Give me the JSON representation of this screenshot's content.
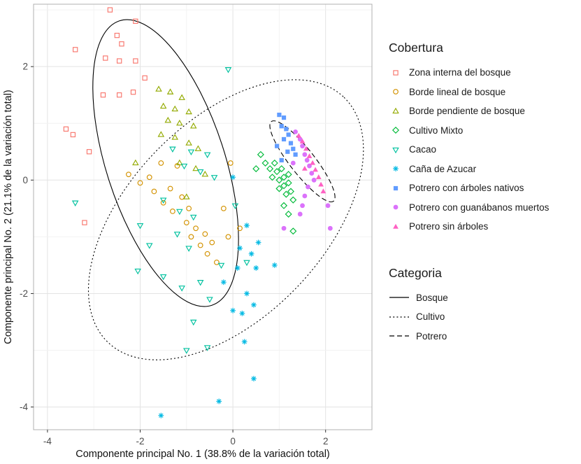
{
  "chart_data": {
    "type": "scatter",
    "title": "",
    "x_label": "Componente principal No. 1 (38.8% de la variación total)",
    "y_label": "Componente principal No. 2 (21.1% de la variación total)",
    "x_ticks": [
      -4,
      -2,
      0,
      2
    ],
    "y_ticks": [
      -4,
      -2,
      0,
      2
    ],
    "x_range": [
      -4.3,
      3.0
    ],
    "y_range": [
      -4.4,
      3.1
    ],
    "grid": true,
    "legend_position": "right",
    "series": [
      {
        "name": "Zona interna del bosque",
        "marker": "square-open",
        "color": "#F8766D",
        "points": [
          [
            -2.65,
            3.0
          ],
          [
            -2.1,
            2.8
          ],
          [
            -2.5,
            2.55
          ],
          [
            -2.4,
            2.4
          ],
          [
            -3.4,
            2.3
          ],
          [
            -2.75,
            2.15
          ],
          [
            -2.45,
            2.1
          ],
          [
            -2.1,
            2.1
          ],
          [
            -1.9,
            1.8
          ],
          [
            -2.15,
            1.55
          ],
          [
            -2.45,
            1.5
          ],
          [
            -2.8,
            1.5
          ],
          [
            -3.6,
            0.9
          ],
          [
            -3.45,
            0.8
          ],
          [
            -3.1,
            0.5
          ],
          [
            -3.2,
            -0.75
          ]
        ]
      },
      {
        "name": "Borde lineal de bosque",
        "marker": "circle-open",
        "color": "#D39200",
        "points": [
          [
            -2.25,
            0.1
          ],
          [
            -2.0,
            -0.05
          ],
          [
            -1.8,
            0.05
          ],
          [
            -1.7,
            -0.2
          ],
          [
            -1.55,
            0.3
          ],
          [
            -1.5,
            -0.4
          ],
          [
            -1.35,
            -0.15
          ],
          [
            -1.3,
            -0.55
          ],
          [
            -1.2,
            0.25
          ],
          [
            -1.1,
            -0.3
          ],
          [
            -1.0,
            -0.75
          ],
          [
            -0.95,
            -0.5
          ],
          [
            -0.9,
            -1.0
          ],
          [
            -0.8,
            -0.85
          ],
          [
            -0.7,
            -1.15
          ],
          [
            -0.6,
            -0.95
          ],
          [
            -0.55,
            -1.3
          ],
          [
            -0.45,
            -1.1
          ],
          [
            -0.35,
            -1.45
          ],
          [
            -0.2,
            -0.5
          ],
          [
            -0.1,
            -1.0
          ],
          [
            0.15,
            -0.85
          ],
          [
            -0.05,
            0.3
          ]
        ]
      },
      {
        "name": "Borde pendiente de bosque",
        "marker": "triangle-open",
        "color": "#93AA00",
        "points": [
          [
            -1.6,
            1.6
          ],
          [
            -1.35,
            1.55
          ],
          [
            -1.1,
            1.45
          ],
          [
            -1.5,
            1.3
          ],
          [
            -1.25,
            1.25
          ],
          [
            -0.95,
            1.2
          ],
          [
            -1.4,
            1.05
          ],
          [
            -1.15,
            1.0
          ],
          [
            -0.85,
            0.95
          ],
          [
            -1.55,
            0.8
          ],
          [
            -1.25,
            0.75
          ],
          [
            -0.95,
            0.65
          ],
          [
            -0.75,
            0.55
          ],
          [
            -2.1,
            0.3
          ],
          [
            -1.15,
            0.3
          ],
          [
            -0.8,
            0.2
          ],
          [
            -0.6,
            0.1
          ],
          [
            -1.0,
            -0.3
          ]
        ]
      },
      {
        "name": "Cultivo Mixto",
        "marker": "diamond-open",
        "color": "#00BA38",
        "points": [
          [
            0.5,
            0.2
          ],
          [
            0.6,
            0.45
          ],
          [
            0.7,
            0.3
          ],
          [
            0.8,
            0.2
          ],
          [
            0.85,
            0.05
          ],
          [
            0.9,
            0.3
          ],
          [
            0.95,
            0.15
          ],
          [
            1.0,
            0.0
          ],
          [
            1.0,
            -0.15
          ],
          [
            1.05,
            0.2
          ],
          [
            1.1,
            0.05
          ],
          [
            1.1,
            -0.1
          ],
          [
            1.15,
            -0.25
          ],
          [
            1.2,
            0.1
          ],
          [
            1.2,
            -0.05
          ],
          [
            1.25,
            -0.2
          ],
          [
            1.3,
            -0.35
          ],
          [
            1.1,
            -0.45
          ],
          [
            1.2,
            -0.6
          ],
          [
            1.3,
            -0.9
          ]
        ]
      },
      {
        "name": "Cacao",
        "marker": "triangle-down-open",
        "color": "#00C19F",
        "points": [
          [
            -3.4,
            -0.4
          ],
          [
            -0.1,
            1.95
          ],
          [
            -1.3,
            0.55
          ],
          [
            -0.9,
            0.5
          ],
          [
            -0.55,
            0.45
          ],
          [
            -1.05,
            0.25
          ],
          [
            -0.7,
            0.15
          ],
          [
            -0.4,
            0.05
          ],
          [
            -1.5,
            -0.35
          ],
          [
            -1.15,
            -0.55
          ],
          [
            -0.85,
            -0.65
          ],
          [
            -2.0,
            -0.8
          ],
          [
            -1.2,
            -0.95
          ],
          [
            -0.95,
            -1.2
          ],
          [
            -1.8,
            -1.15
          ],
          [
            -2.05,
            -1.6
          ],
          [
            -1.5,
            -1.7
          ],
          [
            -1.1,
            -1.9
          ],
          [
            -0.7,
            -1.8
          ],
          [
            -0.5,
            -2.1
          ],
          [
            -0.85,
            -2.5
          ],
          [
            -1.0,
            -3.0
          ],
          [
            -0.55,
            -2.95
          ],
          [
            0.05,
            -0.45
          ],
          [
            0.3,
            -1.45
          ],
          [
            -0.25,
            -1.5
          ]
        ]
      },
      {
        "name": "Caña de Azucar",
        "marker": "asterisk",
        "color": "#00B9E3",
        "points": [
          [
            0.0,
            0.05
          ],
          [
            0.3,
            -0.8
          ],
          [
            0.55,
            -1.1
          ],
          [
            0.15,
            -1.2
          ],
          [
            0.4,
            -1.3
          ],
          [
            0.1,
            -1.55
          ],
          [
            0.5,
            -1.55
          ],
          [
            -0.2,
            -1.8
          ],
          [
            0.3,
            -2.0
          ],
          [
            0.0,
            -2.3
          ],
          [
            0.45,
            -2.2
          ],
          [
            0.2,
            -2.35
          ],
          [
            0.25,
            -2.85
          ],
          [
            0.45,
            -3.5
          ],
          [
            -0.3,
            -3.9
          ],
          [
            -1.55,
            -4.15
          ],
          [
            0.9,
            -1.5
          ]
        ]
      },
      {
        "name": "Potrero con árboles nativos",
        "marker": "square-filled",
        "color": "#619CFF",
        "points": [
          [
            1.0,
            1.15
          ],
          [
            1.1,
            1.1
          ],
          [
            1.05,
            0.95
          ],
          [
            1.15,
            0.9
          ],
          [
            1.2,
            0.8
          ],
          [
            1.1,
            0.72
          ],
          [
            1.25,
            0.65
          ],
          [
            1.3,
            0.55
          ],
          [
            1.18,
            0.5
          ],
          [
            1.35,
            0.45
          ],
          [
            1.05,
            0.35
          ],
          [
            0.95,
            0.6
          ]
        ]
      },
      {
        "name": "Potrero con guanábanos muertos",
        "marker": "circle-filled",
        "color": "#DB72FB",
        "points": [
          [
            1.35,
            0.85
          ],
          [
            1.45,
            0.72
          ],
          [
            1.5,
            0.6
          ],
          [
            1.55,
            0.45
          ],
          [
            1.6,
            0.35
          ],
          [
            1.65,
            0.25
          ],
          [
            1.7,
            0.12
          ],
          [
            1.75,
            0.0
          ],
          [
            1.62,
            -0.12
          ],
          [
            1.55,
            -0.28
          ],
          [
            1.5,
            -0.45
          ],
          [
            1.45,
            -0.6
          ],
          [
            1.1,
            -0.85
          ],
          [
            2.05,
            -0.45
          ],
          [
            2.1,
            -0.85
          ],
          [
            1.3,
            0.3
          ]
        ]
      },
      {
        "name": "Potrero sin árboles",
        "marker": "triangle-filled",
        "color": "#FF61C3",
        "points": [
          [
            1.42,
            0.78
          ],
          [
            1.5,
            0.68
          ],
          [
            1.58,
            0.55
          ],
          [
            1.65,
            0.42
          ],
          [
            1.72,
            0.3
          ],
          [
            1.78,
            0.18
          ],
          [
            1.85,
            0.05
          ],
          [
            1.9,
            -0.08
          ],
          [
            1.95,
            -0.2
          ],
          [
            1.55,
            0.2
          ]
        ]
      }
    ],
    "ellipses": [
      {
        "name": "Bosque",
        "cx": -1.45,
        "cy": 0.3,
        "rx": 2.9,
        "ry": 1.15,
        "angle": 72,
        "dash": "solid"
      },
      {
        "name": "Cultivo",
        "cx": -0.15,
        "cy": -0.7,
        "rx": 3.3,
        "ry": 1.9,
        "angle": -46,
        "dash": "dotted"
      },
      {
        "name": "Potrero",
        "cx": 1.5,
        "cy": 0.33,
        "rx": 0.98,
        "ry": 0.24,
        "angle": 52,
        "dash": "dashed"
      }
    ]
  },
  "legend": {
    "cobertura_title": "Cobertura",
    "categoria_title": "Categoria",
    "categoria_items": [
      {
        "label": "Bosque",
        "dash": "solid"
      },
      {
        "label": "Cultivo",
        "dash": "dotted"
      },
      {
        "label": "Potrero",
        "dash": "dashed"
      }
    ]
  },
  "colors": {
    "ellipse_stroke": "#000000",
    "grid_major": "#e3e3e3",
    "grid_minor": "#f2f2f2",
    "panel_border": "#b0b0b0"
  }
}
